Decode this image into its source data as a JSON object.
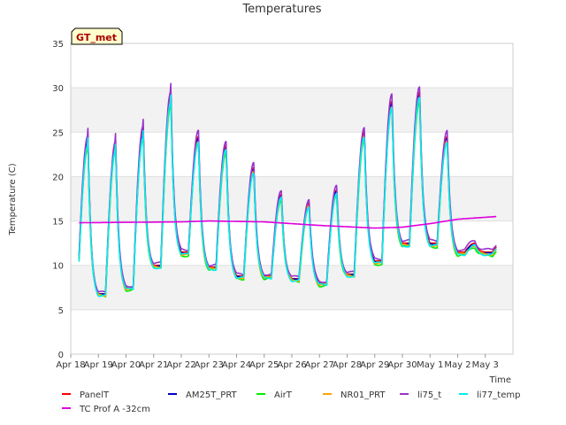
{
  "chart_data": {
    "type": "line",
    "title": "Temperatures",
    "xlabel": "Time",
    "ylabel": "Temperature (C)",
    "ylim": [
      0,
      35
    ],
    "xlim_days": [
      0,
      16
    ],
    "yticks": [
      0,
      5,
      10,
      15,
      20,
      25,
      30,
      35
    ],
    "xtick_labels": [
      "Apr 18",
      "Apr 19",
      "Apr 20",
      "Apr 21",
      "Apr 22",
      "Apr 23",
      "Apr 24",
      "Apr 25",
      "Apr 26",
      "Apr 27",
      "Apr 28",
      "Apr 29",
      "Apr 30",
      "May 1",
      "May 2",
      "May 3"
    ],
    "grid": true,
    "legend_position": "bottom",
    "annotation": "GT_met",
    "series": [
      {
        "name": "PanelT",
        "color": "#ff0000",
        "style": "diurnal",
        "offset": 0.0
      },
      {
        "name": "AM25T_PRT",
        "color": "#0000cc",
        "style": "diurnal",
        "offset": -0.3
      },
      {
        "name": "AirT",
        "color": "#00ee00",
        "style": "diurnal",
        "offset": -0.8
      },
      {
        "name": "NR01_PRT",
        "color": "#ffa500",
        "style": "diurnal",
        "offset": -0.5
      },
      {
        "name": "li75_t",
        "color": "#9933cc",
        "style": "diurnal",
        "offset": 0.6
      },
      {
        "name": "li77_temp",
        "color": "#00eeee",
        "style": "diurnal",
        "offset": -0.6
      },
      {
        "name": "TC Prof A -32cm",
        "color": "#dd00dd",
        "style": "soil",
        "offset": 0.0
      }
    ],
    "daily_extrema": [
      {
        "day": "Apr 18",
        "min": 8.0,
        "max": 24.0
      },
      {
        "day": "Apr 19",
        "min": 6.8,
        "max": 23.5
      },
      {
        "day": "Apr 20",
        "min": 7.5,
        "max": 25.0
      },
      {
        "day": "Apr 21",
        "min": 10.0,
        "max": 29.0
      },
      {
        "day": "Apr 22",
        "min": 11.5,
        "max": 24.5
      },
      {
        "day": "Apr 23",
        "min": 9.8,
        "max": 23.5
      },
      {
        "day": "Apr 24",
        "min": 8.8,
        "max": 21.0
      },
      {
        "day": "Apr 25",
        "min": 8.8,
        "max": 18.0
      },
      {
        "day": "Apr 26",
        "min": 8.5,
        "max": 17.0
      },
      {
        "day": "Apr 27",
        "min": 8.0,
        "max": 18.5
      },
      {
        "day": "Apr 28",
        "min": 9.0,
        "max": 25.0
      },
      {
        "day": "Apr 29",
        "min": 10.5,
        "max": 28.5
      },
      {
        "day": "Apr 30",
        "min": 12.5,
        "max": 29.5
      },
      {
        "day": "May 1",
        "min": 12.5,
        "max": 24.5
      },
      {
        "day": "May 2",
        "min": 11.5,
        "max": 12.5
      }
    ],
    "soil_trend": [
      {
        "day": 0.3,
        "value": 14.8
      },
      {
        "day": 4,
        "value": 14.9
      },
      {
        "day": 5,
        "value": 15.0
      },
      {
        "day": 7,
        "value": 14.9
      },
      {
        "day": 9,
        "value": 14.5
      },
      {
        "day": 11,
        "value": 14.2
      },
      {
        "day": 12,
        "value": 14.3
      },
      {
        "day": 13,
        "value": 14.7
      },
      {
        "day": 14,
        "value": 15.2
      },
      {
        "day": 15.4,
        "value": 15.5
      }
    ]
  }
}
